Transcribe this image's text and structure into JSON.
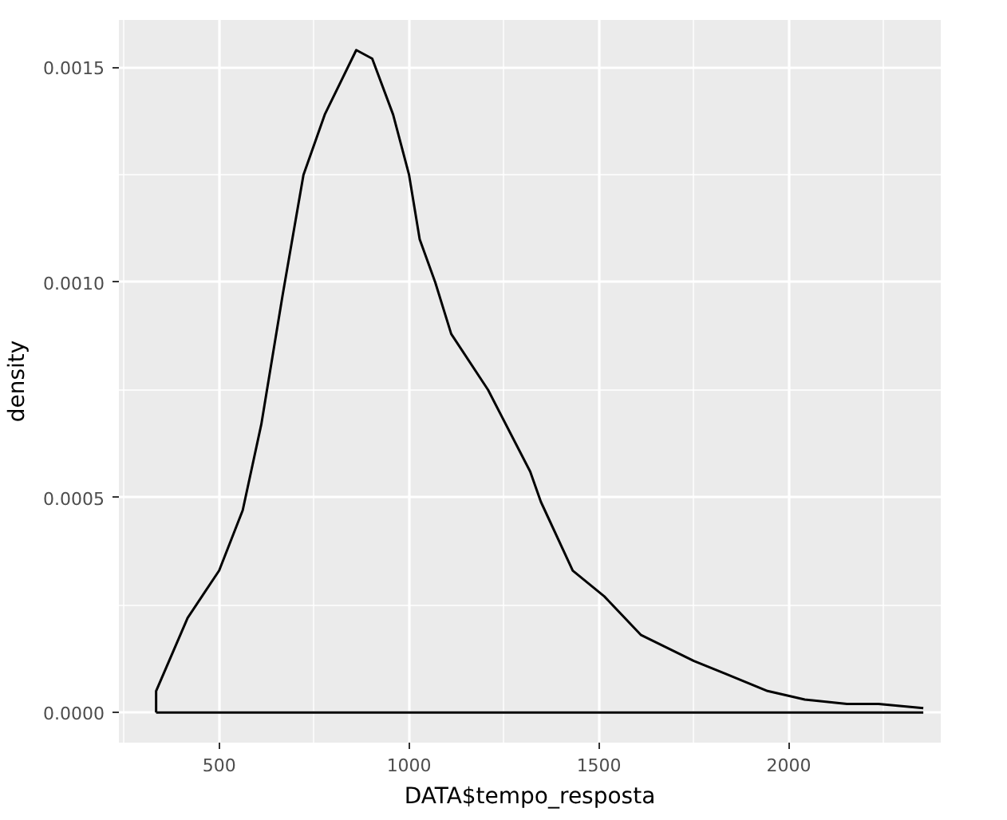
{
  "chart_data": {
    "type": "line",
    "xlabel": "DATA$tempo_resposta",
    "ylabel": "density",
    "x": [
      334,
      334,
      417,
      500,
      562,
      611,
      667,
      722,
      778,
      861,
      903,
      958,
      1000,
      1028,
      1069,
      1111,
      1208,
      1319,
      1347,
      1431,
      1514,
      1611,
      1750,
      1833,
      1944,
      2042,
      2153,
      2236,
      2354
    ],
    "series": [
      {
        "color": "#000000",
        "values": [
          0,
          5e-05,
          0.00022,
          0.00033,
          0.00047,
          0.00067,
          0.00097,
          0.00125,
          0.00139,
          0.00154,
          0.00152,
          0.00139,
          0.00125,
          0.0011,
          0.001,
          0.00088,
          0.00075,
          0.00056,
          0.00049,
          0.00033,
          0.00027,
          0.00018,
          0.00012,
          9e-05,
          5e-05,
          3e-05,
          2e-05,
          2e-05,
          1e-05
        ]
      },
      {
        "color": "#000000",
        "x": [
          334,
          2354
        ],
        "values": [
          0,
          0
        ]
      }
    ],
    "xlim": [
      236,
      2400
    ],
    "ylim": [
      -7e-05,
      0.00161
    ],
    "xticks": [
      500,
      1000,
      1500,
      2000
    ],
    "yticks": [
      {
        "value": 0,
        "label": "0.0000"
      },
      {
        "value": 0.0005,
        "label": "0.0005"
      },
      {
        "value": 0.001,
        "label": "0.0010"
      },
      {
        "value": 0.0015,
        "label": "0.0015"
      }
    ],
    "grid": true
  }
}
